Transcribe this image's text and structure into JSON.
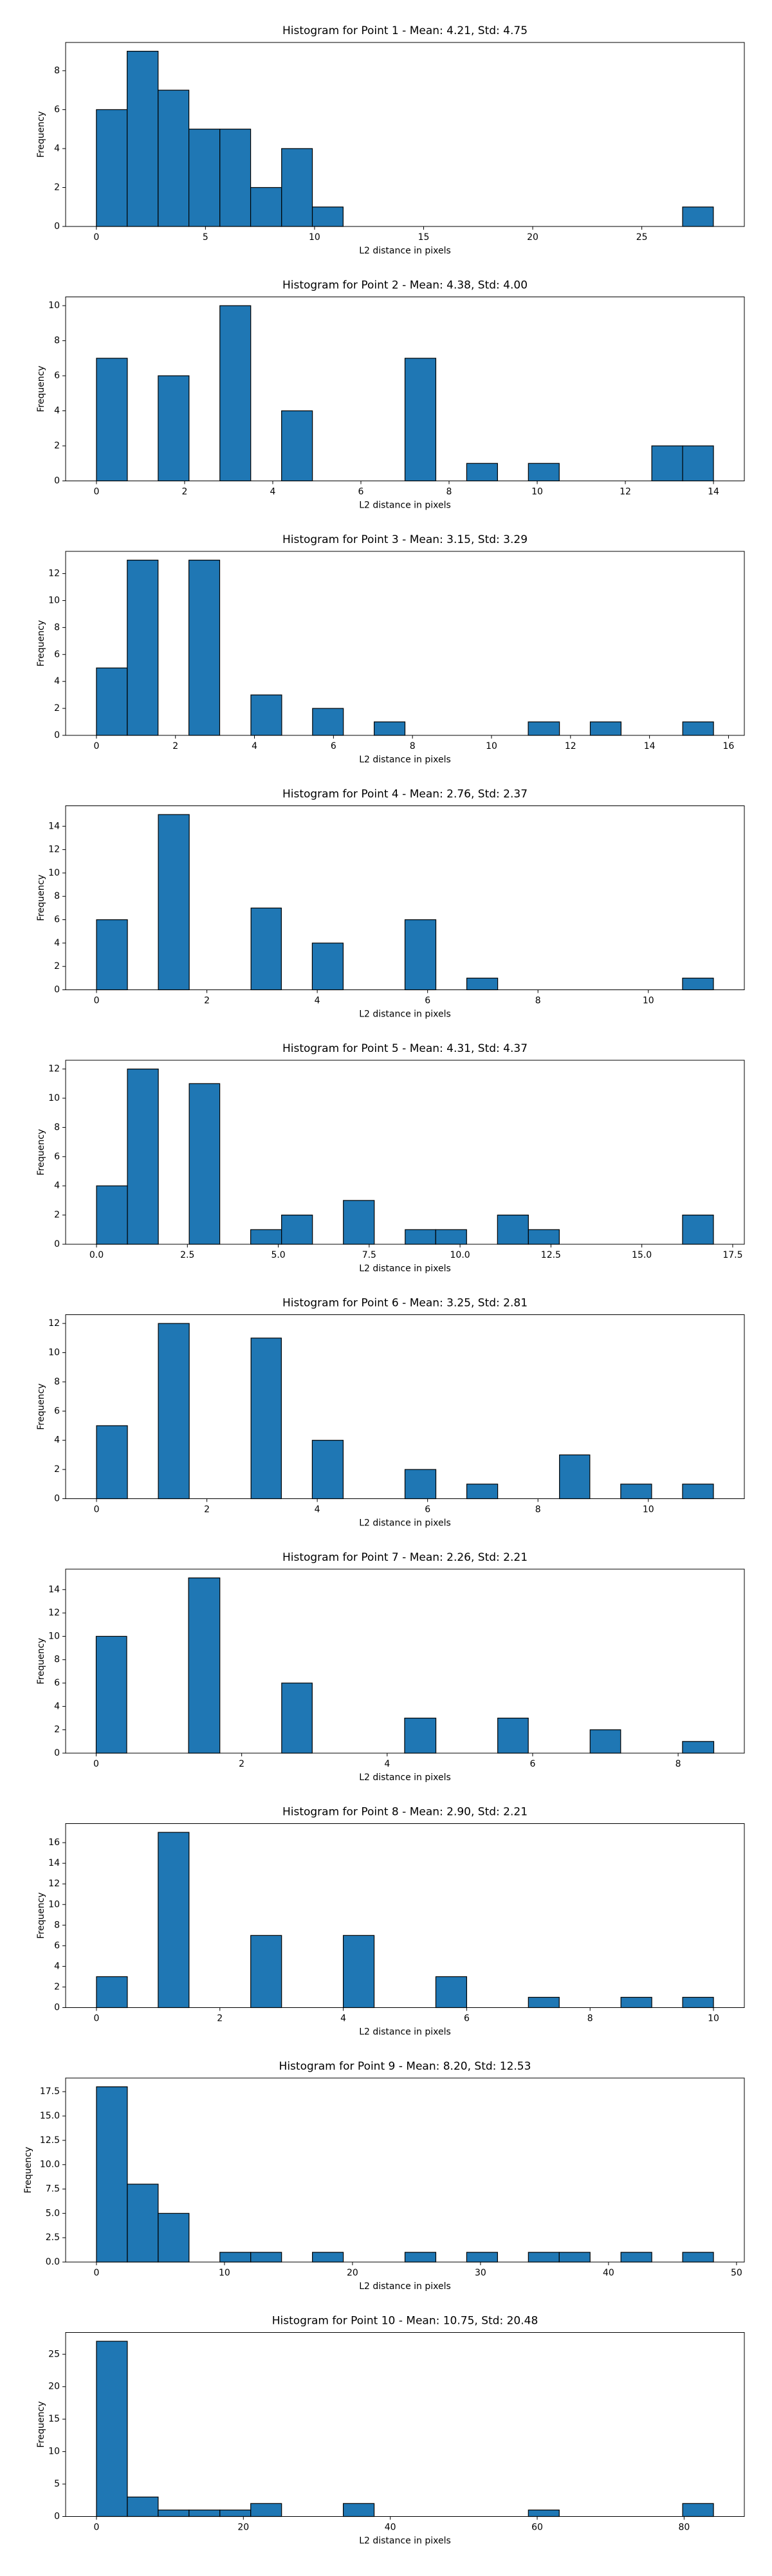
{
  "chart_data": [
    {
      "type": "histogram",
      "title": "Histogram for Point 1 - Mean: 4.21, Std: 4.75",
      "xlabel": "L2 distance in pixels",
      "ylabel": "Frequency",
      "color": "#1f77b4",
      "bins": [
        0,
        1.41,
        2.83,
        4.24,
        5.66,
        7.07,
        8.49,
        9.9,
        11.31,
        12.73,
        14.14,
        15.56,
        16.97,
        18.38,
        19.8,
        21.21,
        22.63,
        24.04,
        25.46,
        26.87,
        28.28
      ],
      "values": [
        6,
        9,
        7,
        5,
        5,
        2,
        4,
        1,
        0,
        0,
        0,
        0,
        0,
        0,
        0,
        0,
        0,
        0,
        0,
        1
      ],
      "xlim": [
        -1.41,
        29.7
      ],
      "ylim": [
        0,
        9.45
      ],
      "xticks": [
        0,
        5,
        10,
        15,
        20,
        25
      ],
      "yticks": [
        0,
        2,
        4,
        6,
        8
      ]
    },
    {
      "type": "histogram",
      "title": "Histogram for Point 2 - Mean: 4.38, Std: 4.00",
      "xlabel": "L2 distance in pixels",
      "ylabel": "Frequency",
      "color": "#1f77b4",
      "bins": [
        0,
        0.7,
        1.4,
        2.1,
        2.8,
        3.5,
        4.2,
        4.9,
        5.6,
        6.3,
        7,
        7.7,
        8.4,
        9.1,
        9.8,
        10.5,
        11.2,
        11.9,
        12.6,
        13.3,
        14
      ],
      "values": [
        7,
        0,
        6,
        0,
        10,
        0,
        4,
        0,
        0,
        0,
        7,
        0,
        1,
        0,
        1,
        0,
        0,
        0,
        2,
        2
      ],
      "xlim": [
        -0.7,
        14.7
      ],
      "ylim": [
        0,
        10.5
      ],
      "xticks": [
        0,
        2,
        4,
        6,
        8,
        10,
        12,
        14
      ],
      "yticks": [
        0,
        2,
        4,
        6,
        8,
        10
      ]
    },
    {
      "type": "histogram",
      "title": "Histogram for Point 3 - Mean: 3.15, Std: 3.29",
      "xlabel": "L2 distance in pixels",
      "ylabel": "Frequency",
      "color": "#1f77b4",
      "bins": [
        0,
        0.78,
        1.56,
        2.34,
        3.12,
        3.91,
        4.69,
        5.47,
        6.25,
        7.03,
        7.81,
        8.59,
        9.37,
        10.15,
        10.93,
        11.72,
        12.5,
        13.28,
        14.06,
        14.84,
        15.62
      ],
      "values": [
        5,
        13,
        0,
        13,
        0,
        3,
        0,
        2,
        0,
        1,
        0,
        0,
        0,
        0,
        1,
        0,
        1,
        0,
        0,
        1
      ],
      "xlim": [
        -0.78,
        16.4
      ],
      "ylim": [
        0,
        13.65
      ],
      "xticks": [
        0,
        2,
        4,
        6,
        8,
        10,
        12,
        14,
        16
      ],
      "yticks": [
        0,
        2,
        4,
        6,
        8,
        10,
        12
      ]
    },
    {
      "type": "histogram",
      "title": "Histogram for Point 4 - Mean: 2.76, Std: 2.37",
      "xlabel": "L2 distance in pixels",
      "ylabel": "Frequency",
      "color": "#1f77b4",
      "bins": [
        0,
        0.56,
        1.12,
        1.68,
        2.24,
        2.8,
        3.35,
        3.91,
        4.47,
        5.03,
        5.59,
        6.15,
        6.71,
        7.27,
        7.83,
        8.39,
        8.94,
        9.5,
        10.06,
        10.62,
        11.18
      ],
      "values": [
        6,
        0,
        15,
        0,
        0,
        7,
        0,
        4,
        0,
        0,
        6,
        0,
        1,
        0,
        0,
        0,
        0,
        0,
        0,
        1
      ],
      "xlim": [
        -0.56,
        11.74
      ],
      "ylim": [
        0,
        15.75
      ],
      "xticks": [
        0,
        2,
        4,
        6,
        8,
        10
      ],
      "yticks": [
        0,
        2,
        4,
        6,
        8,
        10,
        12,
        14
      ]
    },
    {
      "type": "histogram",
      "title": "Histogram for Point 5 - Mean: 4.31, Std: 4.37",
      "xlabel": "L2 distance in pixels",
      "ylabel": "Frequency",
      "color": "#1f77b4",
      "bins": [
        0,
        0.85,
        1.7,
        2.55,
        3.39,
        4.24,
        5.09,
        5.94,
        6.79,
        7.64,
        8.49,
        9.33,
        10.18,
        11.03,
        11.88,
        12.73,
        13.58,
        14.42,
        15.27,
        16.12,
        16.97
      ],
      "values": [
        4,
        12,
        0,
        11,
        0,
        1,
        2,
        0,
        3,
        0,
        1,
        1,
        0,
        2,
        1,
        0,
        0,
        0,
        0,
        2
      ],
      "xlim": [
        -0.85,
        17.82
      ],
      "ylim": [
        0,
        12.6
      ],
      "xticks": [
        {
          "value": 0,
          "label": "0.0"
        },
        {
          "value": 2.5,
          "label": "2.5"
        },
        {
          "value": 5,
          "label": "5.0"
        },
        {
          "value": 7.5,
          "label": "7.5"
        },
        {
          "value": 10,
          "label": "10.0"
        },
        {
          "value": 12.5,
          "label": "12.5"
        },
        {
          "value": 15,
          "label": "15.0"
        },
        {
          "value": 17.5,
          "label": "17.5"
        }
      ],
      "yticks": [
        0,
        2,
        4,
        6,
        8,
        10,
        12
      ]
    },
    {
      "type": "histogram",
      "title": "Histogram for Point 6 - Mean: 3.25, Std: 2.81",
      "xlabel": "L2 distance in pixels",
      "ylabel": "Frequency",
      "color": "#1f77b4",
      "bins": [
        0,
        0.56,
        1.12,
        1.68,
        2.24,
        2.8,
        3.35,
        3.91,
        4.47,
        5.03,
        5.59,
        6.15,
        6.71,
        7.27,
        7.83,
        8.39,
        8.94,
        9.5,
        10.06,
        10.62,
        11.18
      ],
      "values": [
        5,
        0,
        12,
        0,
        0,
        11,
        0,
        4,
        0,
        0,
        2,
        0,
        1,
        0,
        0,
        3,
        0,
        1,
        0,
        1
      ],
      "xlim": [
        -0.56,
        11.74
      ],
      "ylim": [
        0,
        12.6
      ],
      "xticks": [
        0,
        2,
        4,
        6,
        8,
        10
      ],
      "yticks": [
        0,
        2,
        4,
        6,
        8,
        10,
        12
      ]
    },
    {
      "type": "histogram",
      "title": "Histogram for Point 7 - Mean: 2.26, Std: 2.21",
      "xlabel": "L2 distance in pixels",
      "ylabel": "Frequency",
      "color": "#1f77b4",
      "bins": [
        0,
        0.42,
        0.85,
        1.27,
        1.7,
        2.12,
        2.55,
        2.97,
        3.39,
        3.82,
        4.24,
        4.67,
        5.09,
        5.52,
        5.94,
        6.36,
        6.79,
        7.21,
        7.64,
        8.06,
        8.49
      ],
      "values": [
        10,
        0,
        0,
        15,
        0,
        0,
        6,
        0,
        0,
        0,
        3,
        0,
        0,
        3,
        0,
        0,
        2,
        0,
        0,
        1
      ],
      "xlim": [
        -0.42,
        8.91
      ],
      "ylim": [
        0,
        15.75
      ],
      "xticks": [
        0,
        2,
        4,
        6,
        8
      ],
      "yticks": [
        0,
        2,
        4,
        6,
        8,
        10,
        12,
        14
      ]
    },
    {
      "type": "histogram",
      "title": "Histogram for Point 8 - Mean: 2.90, Std: 2.21",
      "xlabel": "L2 distance in pixels",
      "ylabel": "Frequency",
      "color": "#1f77b4",
      "bins": [
        0,
        0.5,
        1,
        1.5,
        2,
        2.5,
        3,
        3.5,
        4,
        4.5,
        5,
        5.5,
        6,
        6.5,
        7,
        7.5,
        8,
        8.5,
        9,
        9.5,
        10
      ],
      "values": [
        3,
        0,
        17,
        0,
        0,
        7,
        0,
        0,
        7,
        0,
        0,
        3,
        0,
        0,
        1,
        0,
        0,
        1,
        0,
        1
      ],
      "xlim": [
        -0.5,
        10.5
      ],
      "ylim": [
        0,
        17.85
      ],
      "xticks": [
        0,
        2,
        4,
        6,
        8,
        10
      ],
      "yticks": [
        0,
        2,
        4,
        6,
        8,
        10,
        12,
        14,
        16
      ]
    },
    {
      "type": "histogram",
      "title": "Histogram for Point 9 - Mean: 8.20, Std: 12.53",
      "xlabel": "L2 distance in pixels",
      "ylabel": "Frequency",
      "color": "#1f77b4",
      "bins": [
        0,
        2.41,
        4.82,
        7.23,
        9.64,
        12.05,
        14.46,
        16.87,
        19.28,
        21.69,
        24.1,
        26.51,
        28.92,
        31.33,
        33.74,
        36.15,
        38.56,
        40.97,
        43.38,
        45.79,
        48.2
      ],
      "values": [
        18,
        8,
        5,
        0,
        1,
        1,
        0,
        1,
        0,
        0,
        1,
        0,
        1,
        0,
        1,
        1,
        0,
        1,
        0,
        1
      ],
      "xlim": [
        -2.41,
        50.61
      ],
      "ylim": [
        0,
        18.9
      ],
      "xticks": [
        0,
        10,
        20,
        30,
        40,
        50
      ],
      "yticks": [
        {
          "value": 0,
          "label": "0.0"
        },
        {
          "value": 2.5,
          "label": "2.5"
        },
        {
          "value": 5,
          "label": "5.0"
        },
        {
          "value": 7.5,
          "label": "7.5"
        },
        {
          "value": 10,
          "label": "10.0"
        },
        {
          "value": 12.5,
          "label": "12.5"
        },
        {
          "value": 15,
          "label": "15.0"
        },
        {
          "value": 17.5,
          "label": "17.5"
        }
      ]
    },
    {
      "type": "histogram",
      "title": "Histogram for Point 10 - Mean: 10.75, Std: 20.48",
      "xlabel": "L2 distance in pixels",
      "ylabel": "Frequency",
      "color": "#1f77b4",
      "bins": [
        0,
        4.2,
        8.4,
        12.6,
        16.8,
        21,
        25.2,
        29.4,
        33.6,
        37.8,
        42,
        46.2,
        50.4,
        54.6,
        58.8,
        63,
        67.2,
        71.4,
        75.6,
        79.8,
        84
      ],
      "values": [
        27,
        3,
        1,
        1,
        1,
        2,
        0,
        0,
        2,
        0,
        0,
        0,
        0,
        0,
        1,
        0,
        0,
        0,
        0,
        2
      ],
      "xlim": [
        -4.2,
        88.2
      ],
      "ylim": [
        0,
        28.35
      ],
      "xticks": [
        0,
        20,
        40,
        60,
        80
      ],
      "yticks": [
        0,
        5,
        10,
        15,
        20,
        25
      ]
    }
  ]
}
